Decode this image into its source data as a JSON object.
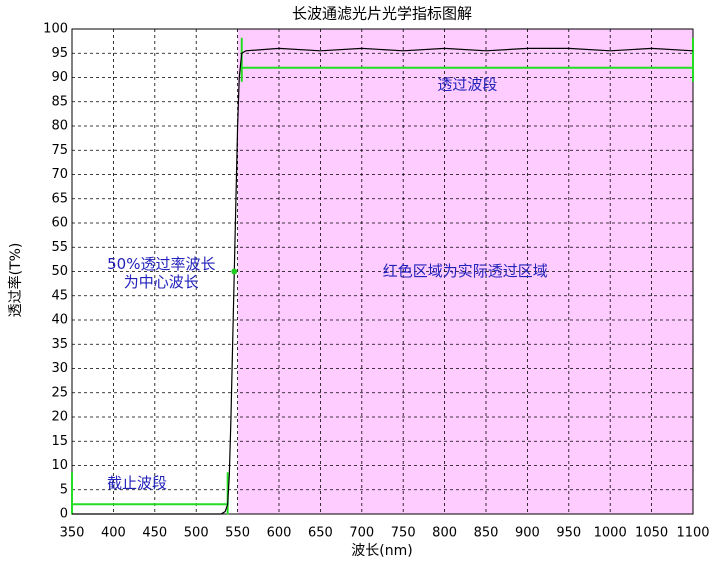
{
  "chart_data": {
    "type": "line",
    "title": "长波通滤光片光学指标图解",
    "xlabel": "波长(nm)",
    "ylabel": "透过率(T%)",
    "x": [
      350,
      400,
      450,
      500,
      530,
      535,
      538,
      540,
      542,
      544,
      546,
      548,
      550,
      552,
      555,
      560,
      600,
      650,
      700,
      750,
      800,
      850,
      900,
      950,
      1000,
      1050,
      1100
    ],
    "series": [
      {
        "color": "#000000",
        "values": [
          0,
          0,
          0,
          0,
          0,
          0.5,
          2,
          8,
          20,
          35,
          50,
          65,
          80,
          90,
          95,
          95.5,
          96,
          95.5,
          96,
          95.5,
          96,
          95.5,
          96,
          96,
          95.5,
          96,
          95.5
        ]
      }
    ],
    "xlim": [
      350,
      1100
    ],
    "xticks": [
      350,
      400,
      450,
      500,
      550,
      600,
      650,
      700,
      750,
      800,
      850,
      900,
      950,
      1000,
      1050,
      1100
    ],
    "ylim": [
      0,
      100
    ],
    "yticks": [
      0,
      5,
      10,
      15,
      20,
      25,
      30,
      35,
      40,
      45,
      50,
      55,
      60,
      65,
      70,
      75,
      80,
      85,
      90,
      95,
      100
    ],
    "grid": true,
    "shaded_region": {
      "label": "红色区域为实际透过区域",
      "x": [
        550,
        1100
      ],
      "color": "#ffccff"
    },
    "bands": [
      {
        "label": "截止波段",
        "x": [
          350,
          538
        ],
        "y": 2,
        "color": "#22dd22"
      },
      {
        "label": "透过波段",
        "x": [
          555,
          1100
        ],
        "y": 92,
        "color": "#22dd22"
      }
    ],
    "marker": {
      "x": 546,
      "y": 50,
      "color": "#22cc22",
      "label": [
        "50%透过率波长",
        "为中心波长"
      ]
    }
  }
}
